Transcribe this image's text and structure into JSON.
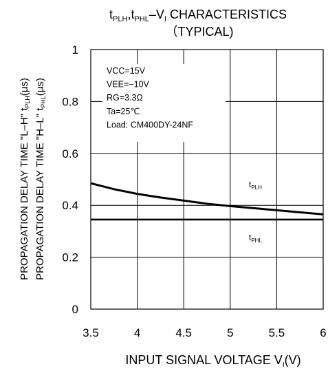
{
  "chart_data": {
    "type": "line",
    "title": {
      "line1_parts": [
        {
          "text": "t",
          "style": "normal"
        },
        {
          "text": "PLH",
          "style": "sub"
        },
        {
          "text": ",t",
          "style": "normal"
        },
        {
          "text": "PHL",
          "style": "sub"
        },
        {
          "text": "–V",
          "style": "normal"
        },
        {
          "text": "I",
          "style": "sub"
        },
        {
          "text": " CHARACTERISTICS",
          "style": "normal"
        }
      ],
      "line2": "（TYPICAL)"
    },
    "xlabel": "INPUT SIGNAL VOLTAGE",
    "xlabel_symbol": {
      "main": "V",
      "sub": "I",
      "unit": "(V)"
    },
    "ylabel_lines": [
      {
        "prefix": "PROPAGATION  DELAY  TIME \"L–H\"  t",
        "sub": "PLH",
        "suffix": "(μs)"
      },
      {
        "prefix": "PROPAGATION  DELAY  TIME \"H–L\"  t",
        "sub": "PHL",
        "suffix": "(μs)"
      }
    ],
    "xlim": [
      3.5,
      6
    ],
    "ylim": [
      0,
      1
    ],
    "x_ticks": [
      3.5,
      4,
      4.5,
      5,
      5.5,
      6
    ],
    "y_ticks": [
      0,
      0.2,
      0.4,
      0.6,
      0.8,
      1
    ],
    "x_tick_labels": [
      "3.5",
      "4",
      "4.5",
      "5",
      "5.5",
      "6"
    ],
    "y_tick_labels": [
      "0",
      "0.2",
      "0.4",
      "0.6",
      "0.8",
      "1"
    ],
    "grid": true,
    "conditions": [
      "VCC=15V",
      "VEE=−10V",
      "RG=3.3Ω",
      "Ta=25℃",
      "Load: CM400DY-24NF"
    ],
    "series": [
      {
        "name": "tPLH",
        "label_main": "t",
        "label_sub": "PLH",
        "x": [
          3.5,
          3.75,
          4,
          4.25,
          4.5,
          4.75,
          5,
          5.25,
          5.5,
          5.75,
          6
        ],
        "y": [
          0.485,
          0.462,
          0.444,
          0.43,
          0.418,
          0.406,
          0.397,
          0.389,
          0.381,
          0.373,
          0.365
        ]
      },
      {
        "name": "tPHL",
        "label_main": "t",
        "label_sub": "PHL",
        "x": [
          3.5,
          6
        ],
        "y": [
          0.345,
          0.345
        ]
      }
    ],
    "colors": {
      "line": "#000000",
      "grid": "#000000",
      "background": "#ffffff"
    }
  }
}
